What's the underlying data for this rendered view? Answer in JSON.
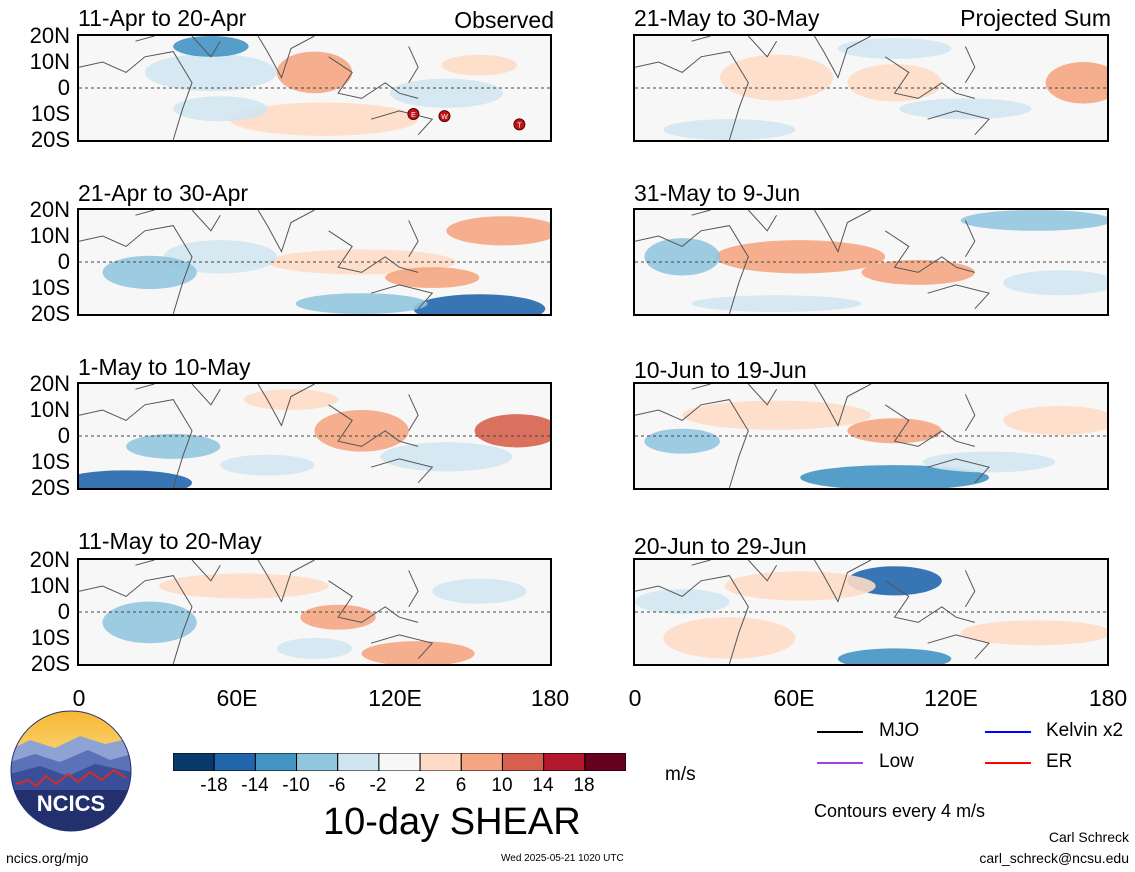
{
  "chart_data": {
    "type": "heatmap",
    "title": "10-day SHEAR",
    "units": "m/s",
    "panels": [
      {
        "label": "11-Apr to 20-Apr",
        "tag": "Observed"
      },
      {
        "label": "21-Apr to 30-Apr",
        "tag": ""
      },
      {
        "label": "1-May to 10-May",
        "tag": ""
      },
      {
        "label": "11-May to 20-May",
        "tag": ""
      },
      {
        "label": "21-May to 30-May",
        "tag": "Projected Sum"
      },
      {
        "label": "31-May to 9-Jun",
        "tag": ""
      },
      {
        "label": "10-Jun to 19-Jun",
        "tag": ""
      },
      {
        "label": "20-Jun to 29-Jun",
        "tag": ""
      }
    ],
    "y_ticks": [
      "20N",
      "10N",
      "0",
      "10S",
      "20S"
    ],
    "x_ticks": [
      "0",
      "60E",
      "120E",
      "180"
    ],
    "colorbar_ticks": [
      "-18",
      "-14",
      "-10",
      "-6",
      "-2",
      "2",
      "6",
      "10",
      "14",
      "18"
    ],
    "colorbar_colors": [
      "#0a3a6b",
      "#2166ac",
      "#4393c3",
      "#92c5de",
      "#d1e5f0",
      "#f7f7f7",
      "#fddbc7",
      "#f4a582",
      "#d6604d",
      "#b2182b",
      "#67001f"
    ],
    "storm_markers": [
      "E",
      "W",
      "T"
    ],
    "legend": [
      {
        "label": "MJO",
        "color": "#000000"
      },
      {
        "label": "Kelvin x2",
        "color": "#0000ff"
      },
      {
        "label": "Low",
        "color": "#a040e0"
      },
      {
        "label": "ER",
        "color": "#ff0000"
      }
    ],
    "contour_note": "Contours every 4 m/s"
  },
  "footer": {
    "logo_text": "NCICS",
    "site": "ncics.org/mjo",
    "timestamp": "Wed 2025-05-21 1020 UTC",
    "author": "Carl Schreck",
    "email": "carl_schreck@ncsu.edu"
  }
}
